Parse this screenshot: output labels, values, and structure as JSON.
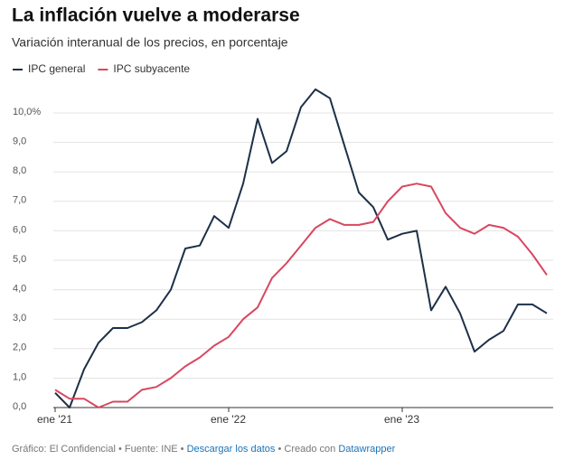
{
  "chart_data": {
    "type": "line",
    "title": "La inflación vuelve a moderarse",
    "subtitle": "Variación interanual de los precios, en porcentaje",
    "categories": [
      "ene '21",
      null,
      null,
      null,
      null,
      null,
      null,
      null,
      null,
      null,
      null,
      null,
      "ene '22",
      null,
      null,
      null,
      null,
      null,
      null,
      null,
      null,
      null,
      null,
      null,
      "ene '23",
      null,
      null,
      null,
      null,
      null,
      null,
      null,
      null,
      null,
      null
    ],
    "series": [
      {
        "name": "IPC general",
        "color": "#1d3048",
        "values": [
          0.5,
          0.0,
          1.3,
          2.2,
          2.7,
          2.7,
          2.9,
          3.3,
          4.0,
          5.4,
          5.5,
          6.5,
          6.1,
          7.6,
          9.8,
          8.3,
          8.7,
          10.2,
          10.8,
          10.5,
          8.9,
          7.3,
          6.8,
          5.7,
          5.9,
          6.0,
          3.3,
          4.1,
          3.2,
          1.9,
          2.3,
          2.6,
          3.5,
          3.5,
          3.2
        ]
      },
      {
        "name": "IPC subyacente",
        "color": "#d8475f",
        "values": [
          0.6,
          0.3,
          0.3,
          0.0,
          0.2,
          0.2,
          0.6,
          0.7,
          1.0,
          1.4,
          1.7,
          2.1,
          2.4,
          3.0,
          3.4,
          4.4,
          4.9,
          5.5,
          6.1,
          6.4,
          6.2,
          6.2,
          6.3,
          7.0,
          7.5,
          7.6,
          7.5,
          6.6,
          6.1,
          5.9,
          6.2,
          6.1,
          5.8,
          5.2,
          4.5
        ]
      }
    ],
    "ylim": [
      0,
      11
    ],
    "yticks": [
      {
        "value": 0,
        "label": "0,0"
      },
      {
        "value": 1,
        "label": "1,0"
      },
      {
        "value": 2,
        "label": "2,0"
      },
      {
        "value": 3,
        "label": "3,0"
      },
      {
        "value": 4,
        "label": "4,0"
      },
      {
        "value": 5,
        "label": "5,0"
      },
      {
        "value": 6,
        "label": "6,0"
      },
      {
        "value": 7,
        "label": "7,0"
      },
      {
        "value": 8,
        "label": "8,0"
      },
      {
        "value": 9,
        "label": "9,0"
      },
      {
        "value": 10,
        "label": "10,0%"
      }
    ],
    "grid": true,
    "footer": {
      "source": "Gráfico: El Confidencial • Fuente: INE •",
      "download": "Descargar los datos",
      "made": "• Creado con",
      "tool": "Datawrapper"
    }
  }
}
